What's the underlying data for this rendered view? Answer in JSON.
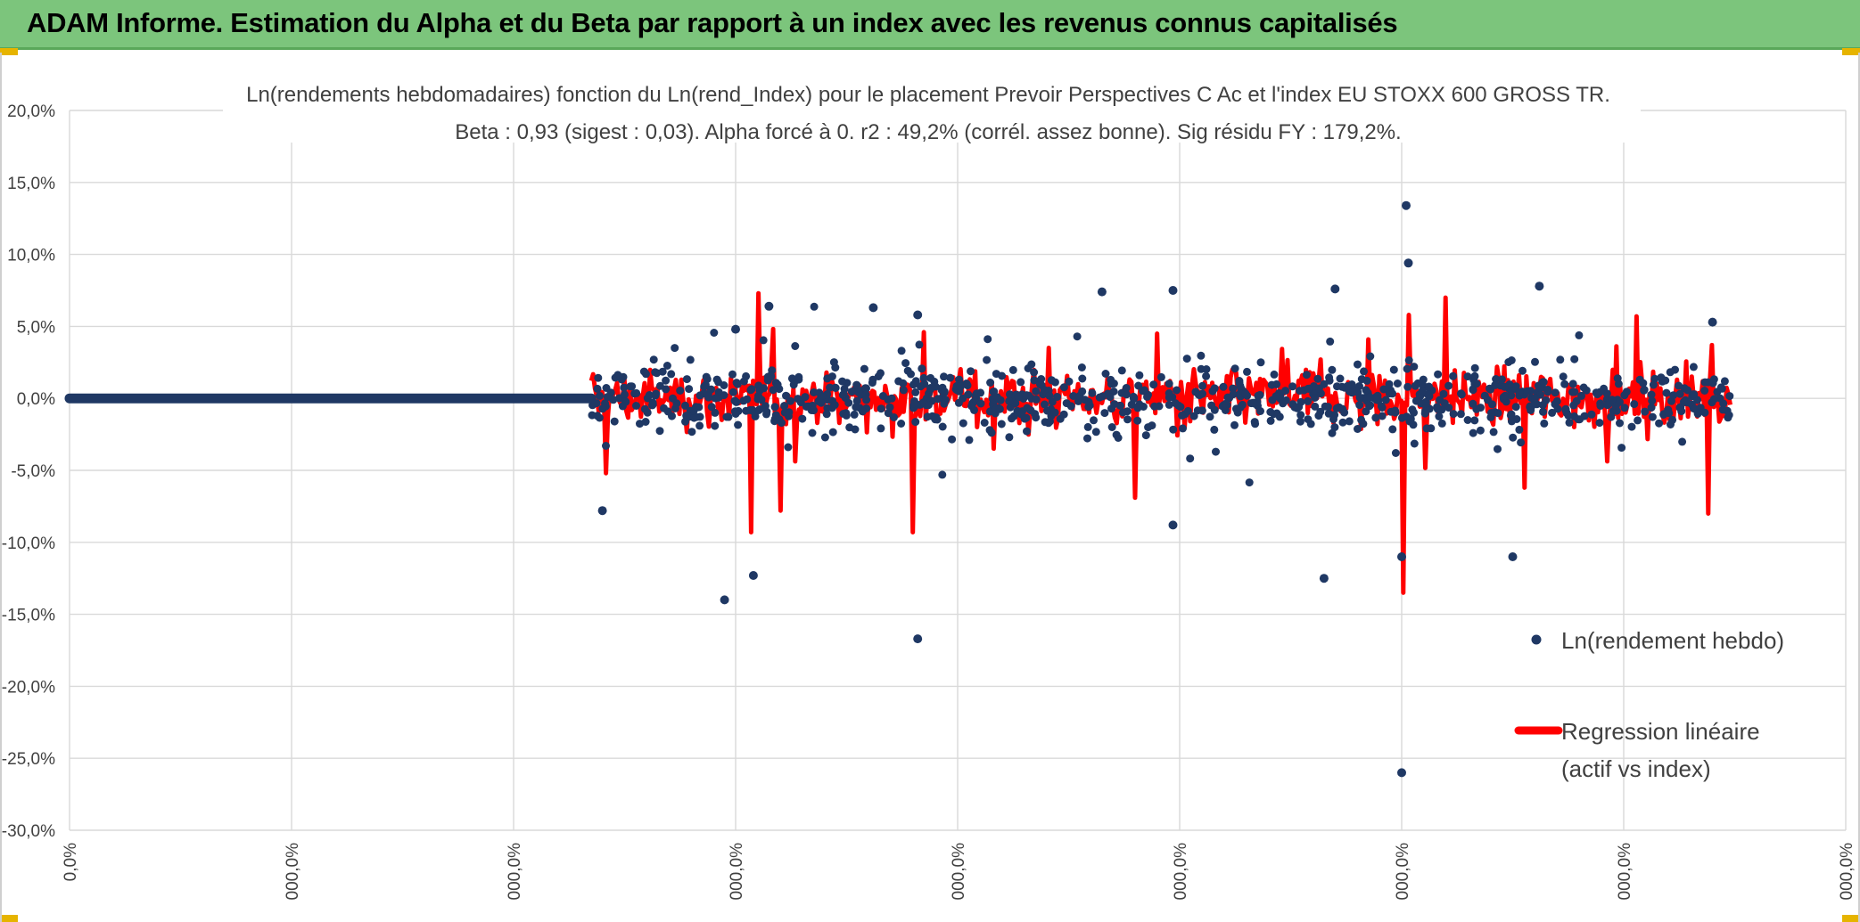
{
  "banner": {
    "title": "ADAM Informe. Estimation du Alpha et du Beta par rapport à un index avec les revenus connus capitalisés"
  },
  "colors": {
    "banner": "#7cc57c",
    "points": "#1f3864",
    "regression": "#ff0000",
    "grid": "#d9d9d9"
  },
  "chart_data": {
    "type": "scatter",
    "title": "Ln(rendements hebdomadaires) fonction du Ln(rend_Index) pour le placement Prevoir Perspectives C Ac et l'index EU STOXX 600 GROSS TR.",
    "subtitle": "Beta : 0,93 (sigest : 0,03). Alpha forcé à 0. r2 : 49,2% (corrél. assez bonne). Sig résidu FY : 179,2%.",
    "y_tick_labels": [
      "20,0%",
      "15,0%",
      "10,0%",
      "5,0%",
      "0,0%",
      "-5,0%",
      "-10,0%",
      "-15,0%",
      "-20,0%",
      "-25,0%",
      "-30,0%"
    ],
    "ylim": [
      -30,
      20
    ],
    "x_tick_labels": [
      "0,0%",
      "000,0%",
      "000,0%",
      "000,0%",
      "000,0%",
      "000,0%",
      "000,0%",
      "000,0%",
      "000,0%"
    ],
    "xlim": [
      0,
      8
    ],
    "grid": true,
    "legend_position": "right",
    "legend": [
      {
        "label": "Ln(rendement hebdo)",
        "marker": "dot"
      },
      {
        "label_line1": "Regression linéaire",
        "label_line2": "(actif vs index)",
        "marker": "line"
      }
    ],
    "series": [
      {
        "name": "Ln(rendement hebdo)",
        "note": "flat line at 0% for x in [0, 2.35], then dense noisy cloud",
        "flat_segment": {
          "x_start": 0.0,
          "x_end": 2.35,
          "y": 0.0
        },
        "highlight_points": [
          {
            "x": 2.4,
            "y": -7.8
          },
          {
            "x": 2.95,
            "y": -14.0
          },
          {
            "x": 3.08,
            "y": -12.3
          },
          {
            "x": 3.0,
            "y": 4.8
          },
          {
            "x": 3.15,
            "y": 6.4
          },
          {
            "x": 3.62,
            "y": 6.3
          },
          {
            "x": 3.82,
            "y": -16.7
          },
          {
            "x": 3.82,
            "y": 5.8
          },
          {
            "x": 4.65,
            "y": 7.4
          },
          {
            "x": 4.97,
            "y": 7.5
          },
          {
            "x": 4.97,
            "y": -8.8
          },
          {
            "x": 5.65,
            "y": -12.5
          },
          {
            "x": 5.7,
            "y": 7.6
          },
          {
            "x": 6.02,
            "y": 13.4
          },
          {
            "x": 6.03,
            "y": 9.4
          },
          {
            "x": 6.0,
            "y": -26.0
          },
          {
            "x": 6.0,
            "y": -11.0
          },
          {
            "x": 6.5,
            "y": -11.0
          },
          {
            "x": 6.62,
            "y": 7.8
          },
          {
            "x": 7.4,
            "y": 5.3
          }
        ]
      },
      {
        "name": "Regression linéaire (actif vs index)",
        "note": "red line tracing beta*index, spikes shown",
        "spikes": [
          {
            "x": 2.42,
            "y": -5.2
          },
          {
            "x": 3.07,
            "y": -9.3
          },
          {
            "x": 3.1,
            "y": 7.3
          },
          {
            "x": 3.2,
            "y": -7.8
          },
          {
            "x": 3.8,
            "y": -9.3
          },
          {
            "x": 3.85,
            "y": 4.6
          },
          {
            "x": 4.8,
            "y": -6.9
          },
          {
            "x": 4.9,
            "y": 4.5
          },
          {
            "x": 6.01,
            "y": -13.5
          },
          {
            "x": 6.03,
            "y": 5.8
          },
          {
            "x": 6.2,
            "y": 7.0
          },
          {
            "x": 6.55,
            "y": -6.2
          },
          {
            "x": 7.38,
            "y": -8.0
          },
          {
            "x": 7.4,
            "y": 3.7
          }
        ]
      }
    ]
  }
}
